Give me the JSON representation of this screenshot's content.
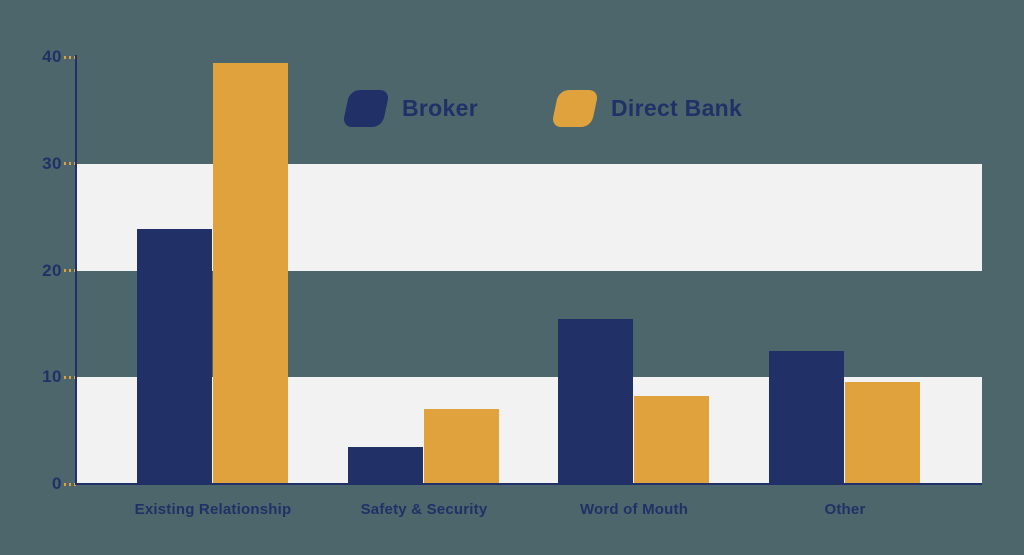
{
  "chart_data": {
    "type": "bar",
    "title": "",
    "categories": [
      "Existing Relationship",
      "Safety & Security",
      "Word of Mouth",
      "Other"
    ],
    "series": [
      {
        "name": "Broker",
        "color": "#213167",
        "values": [
          23.9,
          3.5,
          15.5,
          12.5
        ]
      },
      {
        "name": "Direct Bank",
        "color": "#E0A23C",
        "values": [
          39.4,
          7.0,
          8.2,
          9.6
        ]
      }
    ],
    "y_axis": {
      "min": 0,
      "max": 40,
      "ticks": [
        0,
        10,
        20,
        30,
        40
      ]
    },
    "xlabel": "",
    "ylabel": "",
    "legend_position": "top-center",
    "grid": "alternating-horizontal-bands",
    "bands": [
      [
        20,
        30
      ],
      [
        0,
        10
      ]
    ]
  },
  "colors": {
    "background": "#4C666B",
    "band": "#F2F2F3",
    "axis": "#213167",
    "tick_dash": "#E0A23C",
    "label": "#213167"
  }
}
